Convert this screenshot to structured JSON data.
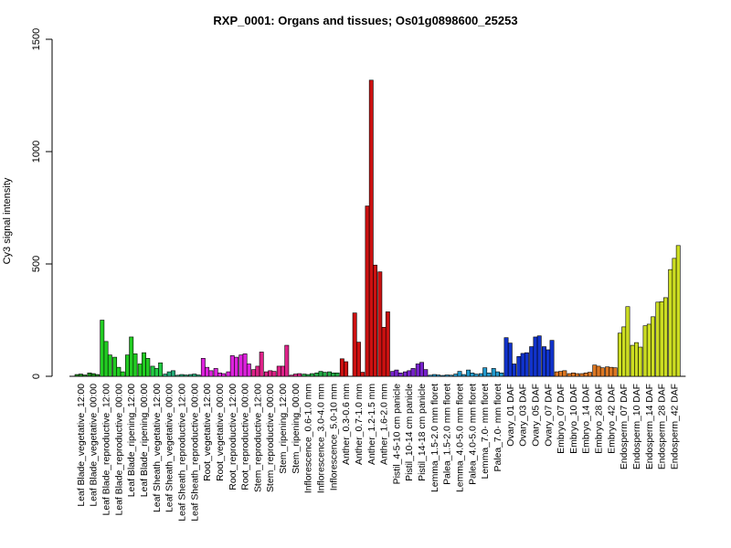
{
  "chart_data": {
    "type": "bar",
    "title": "RXP_0001: Organs and tissues; Os01g0898600_25253",
    "ylabel": "Cy3 signal intensity",
    "xlabel": "",
    "ylim": [
      0,
      1500
    ],
    "yticks": [
      0,
      500,
      1000,
      1500
    ],
    "grid": false,
    "legend": "none",
    "categories": [
      "Leaf Blade_vegetative_12:00",
      "Leaf Blade_vegetative_00:00",
      "Leaf Blade_reproductive_12:00",
      "Leaf Blade_reproductive_00:00",
      "Leaf Blade_ripening_12:00",
      "Leaf Blade_ripening_00:00",
      "Leaf Sheath_vegetative_12:00",
      "Leaf Sheath_vegetative_00:00",
      "Leaf Sheath_reproductive_12:00",
      "Leaf Sheath_reproductive_00:00",
      "Root_vegetative_12:00",
      "Root_vegetative_00:00",
      "Root_reproductive_12:00",
      "Root_reproductive_00:00",
      "Stem_reproductive_12:00",
      "Stem_reproductive_00:00",
      "Stem_ripening_12:00",
      "Stem_ripening_00:00",
      "Inflorescence_0.6-1.0 mm",
      "Inflorescence_3.0-4.0 mm",
      "Inflorescence_5.0-10 mm",
      "Anther_0.3-0.6 mm",
      "Anther_0.7-1.0 mm",
      "Anther_1.2-1.5 mm",
      "Anther_1.6-2.0 mm",
      "Pistil_4-5-10 cm panicle",
      "Pistil_10-14 cm panicle",
      "Pistil_14-18 cm panicle",
      "Lemma_1.5-2.0 mm floret",
      "Palea_1.5-2.0 mm floret",
      "Lemma_4.0-5.0 mm floret",
      "Palea_4.0-5.0 mm floret",
      "Lemma_7.0- mm floret",
      "Palea_7.0- mm floret",
      "Ovary_01 DAF",
      "Ovary_03 DAF",
      "Ovary_05 DAF",
      "Ovary_07 DAF",
      "Embryo_07 DAF",
      "Embryo_10 DAF",
      "Embryo_14 DAF",
      "Embryo_28 DAF",
      "Embryo_42 DAF",
      "Endosperm_07 DAF",
      "Endosperm_10 DAF",
      "Endosperm_14 DAF",
      "Endosperm_28 DAF",
      "Endosperm_42 DAF"
    ],
    "groups": [
      {
        "color": "#1a8a1a",
        "values": [
          8,
          10,
          6
        ]
      },
      {
        "color": "#1a8a1a",
        "values": [
          15,
          12,
          8
        ]
      },
      {
        "color": "#22cc22",
        "values": [
          250,
          155,
          95
        ]
      },
      {
        "color": "#22cc22",
        "values": [
          85,
          40,
          20
        ]
      },
      {
        "color": "#22cc22",
        "values": [
          95,
          175,
          100
        ]
      },
      {
        "color": "#22cc22",
        "values": [
          55,
          105,
          80
        ]
      },
      {
        "color": "#22cc44",
        "values": [
          45,
          35,
          60
        ]
      },
      {
        "color": "#22aa77",
        "values": [
          10,
          20,
          25
        ]
      },
      {
        "color": "#22aa77",
        "values": [
          5,
          8,
          6
        ]
      },
      {
        "color": "#22aa77",
        "values": [
          8,
          10,
          6
        ]
      },
      {
        "color": "#dd22dd",
        "values": [
          80,
          40,
          25
        ]
      },
      {
        "color": "#dd22dd",
        "values": [
          35,
          15,
          12
        ]
      },
      {
        "color": "#dd22dd",
        "values": [
          20,
          92,
          85
        ]
      },
      {
        "color": "#dd22dd",
        "values": [
          95,
          100,
          55
        ]
      },
      {
        "color": "#dd2288",
        "values": [
          30,
          45,
          108
        ]
      },
      {
        "color": "#dd2288",
        "values": [
          20,
          25,
          22
        ]
      },
      {
        "color": "#dd2288",
        "values": [
          45,
          45,
          138
        ]
      },
      {
        "color": "#dd2288",
        "values": [
          5,
          10,
          12
        ]
      },
      {
        "color": "#22aa44",
        "values": [
          10,
          8,
          12
        ]
      },
      {
        "color": "#22aa44",
        "values": [
          15,
          22,
          18
        ]
      },
      {
        "color": "#22aa44",
        "values": [
          20,
          15,
          15
        ]
      },
      {
        "color": "#cc1111",
        "values": [
          78,
          65,
          0
        ]
      },
      {
        "color": "#cc1111",
        "values": [
          282,
          152,
          18
        ]
      },
      {
        "color": "#cc1111",
        "values": [
          758,
          1318,
          495
        ]
      },
      {
        "color": "#cc1111",
        "values": [
          465,
          218,
          287
        ]
      },
      {
        "color": "#7722cc",
        "values": [
          22,
          28,
          15
        ]
      },
      {
        "color": "#7722cc",
        "values": [
          20,
          25,
          35
        ]
      },
      {
        "color": "#7722cc",
        "values": [
          55,
          62,
          30
        ]
      },
      {
        "color": "#2299cc",
        "values": [
          5,
          8,
          6
        ]
      },
      {
        "color": "#2299cc",
        "values": [
          4,
          6,
          5
        ]
      },
      {
        "color": "#2299cc",
        "values": [
          10,
          22,
          8
        ]
      },
      {
        "color": "#2299cc",
        "values": [
          28,
          15,
          10
        ]
      },
      {
        "color": "#2299cc",
        "values": [
          12,
          38,
          15
        ]
      },
      {
        "color": "#2299cc",
        "values": [
          35,
          20,
          15
        ]
      },
      {
        "color": "#1133cc",
        "values": [
          172,
          148,
          55
        ]
      },
      {
        "color": "#1133cc",
        "values": [
          88,
          102,
          105
        ]
      },
      {
        "color": "#1133cc",
        "values": [
          132,
          175,
          180
        ]
      },
      {
        "color": "#1133cc",
        "values": [
          132,
          118,
          160
        ]
      },
      {
        "color": "#dd7722",
        "values": [
          20,
          22,
          25
        ]
      },
      {
        "color": "#dd7722",
        "values": [
          12,
          15,
          12
        ]
      },
      {
        "color": "#dd7722",
        "values": [
          12,
          15,
          18
        ]
      },
      {
        "color": "#dd7722",
        "values": [
          50,
          45,
          38
        ]
      },
      {
        "color": "#dd7722",
        "values": [
          42,
          40,
          38
        ]
      },
      {
        "color": "#ccdd22",
        "values": [
          192,
          220,
          310
        ]
      },
      {
        "color": "#ccdd22",
        "values": [
          138,
          150,
          130
        ]
      },
      {
        "color": "#ccdd22",
        "values": [
          225,
          232,
          265
        ]
      },
      {
        "color": "#ccdd22",
        "values": [
          330,
          332,
          350
        ]
      },
      {
        "color": "#ccdd22",
        "values": [
          475,
          525,
          582
        ]
      }
    ]
  }
}
